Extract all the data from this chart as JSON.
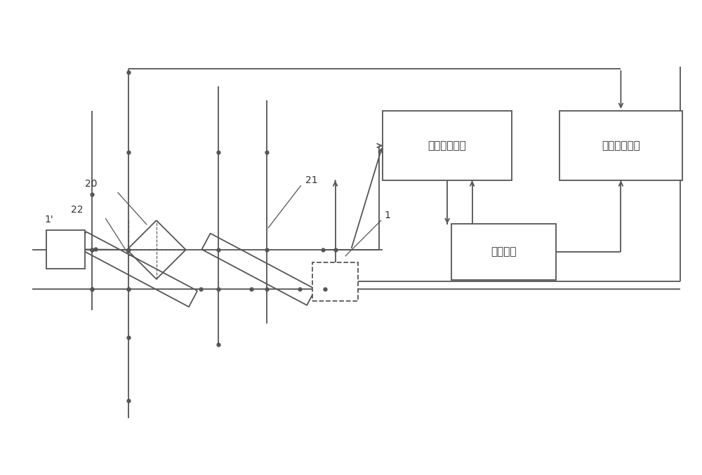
{
  "bg_color": "#ffffff",
  "line_color": "#555555",
  "text_color": "#333333",
  "fig_w": 10.0,
  "fig_h": 6.77,
  "dpi": 100,
  "box1_label": "第一运算模块",
  "box2_label": "第二运算模块",
  "box3_label": "分析模块",
  "label_1prime": "1'",
  "label_20": "20",
  "label_22": "22",
  "label_21": "21",
  "label_1": "1"
}
